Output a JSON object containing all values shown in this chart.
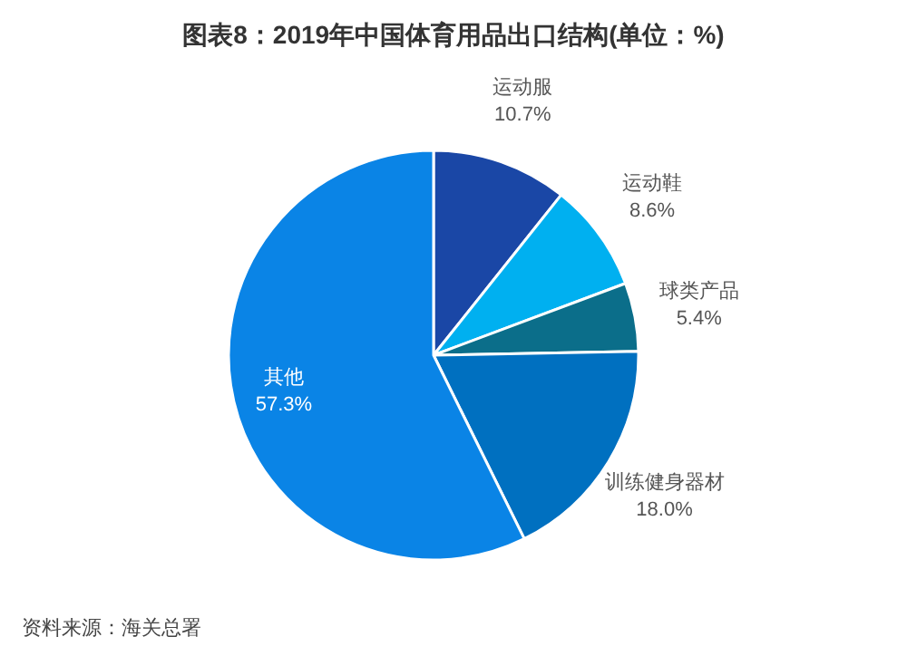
{
  "chart_data": {
    "type": "pie",
    "title": "图表8：2019年中国体育用品出口结构(单位：%)",
    "categories": [
      "运动服",
      "运动鞋",
      "球类产品",
      "训练健身器材",
      "其他"
    ],
    "values": [
      10.7,
      8.6,
      5.4,
      18.0,
      57.3
    ],
    "value_labels": [
      "10.7%",
      "8.6%",
      "5.4%",
      "18.0%",
      "57.3%"
    ],
    "colors": [
      "#1a47a6",
      "#00b0f0",
      "#0b6e8a",
      "#0070c0",
      "#0a84e6"
    ],
    "annotations": [
      "资料来源：海关总署"
    ]
  }
}
